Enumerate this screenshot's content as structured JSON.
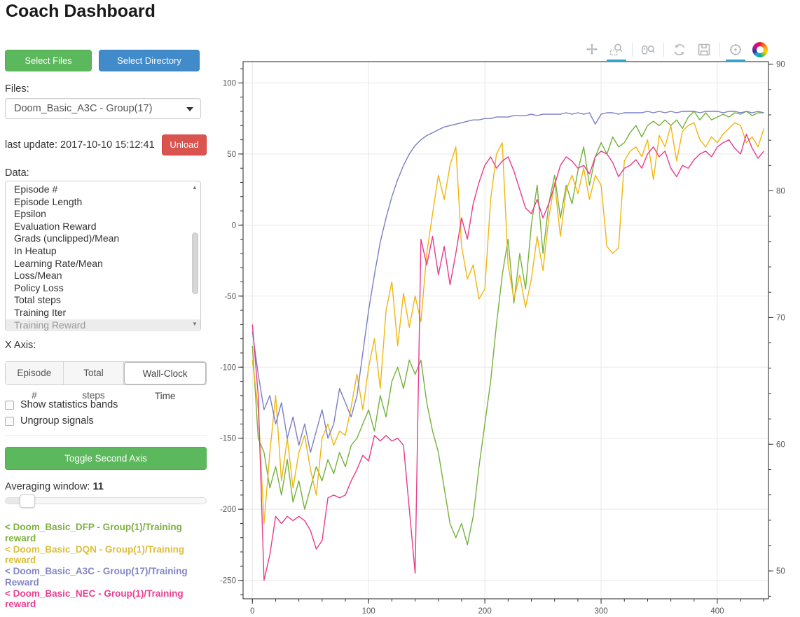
{
  "page": {
    "title": "Coach Dashboard"
  },
  "sidebar": {
    "select_files_label": "Select Files",
    "select_directory_label": "Select Directory",
    "files_label": "Files:",
    "files_selected": "Doom_Basic_A3C - Group(17)",
    "last_update": "last update: 2017-10-10 15:12:41",
    "unload_label": "Unload",
    "data_label": "Data:",
    "data_items": [
      "Episode #",
      "Episode Length",
      "Epsilon",
      "Evaluation Reward",
      "Grads (unclipped)/Mean",
      "In Heatup",
      "Learning Rate/Mean",
      "Loss/Mean",
      "Policy Loss",
      "Total steps",
      "Training Iter",
      "Training Reward"
    ],
    "data_selected": "Training Reward",
    "x_axis_label": "X Axis:",
    "x_axis_options": [
      "Episode #",
      "Total steps",
      "Wall-Clock Time"
    ],
    "x_axis_selected": "Wall-Clock Time",
    "checkboxes": [
      {
        "label": "Show statistics bands",
        "checked": false
      },
      {
        "label": "Ungroup signals",
        "checked": false
      }
    ],
    "toggle_second_axis_label": "Toggle Second Axis",
    "averaging_label": "Averaging window:",
    "averaging_value": "11",
    "legend": [
      {
        "label": "< Doom_Basic_DFP - Group(1)/Training reward",
        "color": "#7cb13e"
      },
      {
        "label": "< Doom_Basic_DQN - Group(1)/Training reward",
        "color": "#ddbe3c"
      },
      {
        "label": "< Doom_Basic_A3C - Group(17)/Training Reward",
        "color": "#8286c6"
      },
      {
        "label": "< Doom_Basic_NEC - Group(1)/Training reward",
        "color": "#ed3d92"
      }
    ]
  },
  "toolbar": {
    "tools": [
      {
        "name": "pan",
        "active": false
      },
      {
        "name": "box-zoom",
        "active": true
      },
      {
        "name": "wheel-zoom",
        "active": false
      },
      {
        "name": "reset",
        "active": false
      },
      {
        "name": "save",
        "active": false
      },
      {
        "name": "hover",
        "active": true
      },
      {
        "name": "bokeh-logo",
        "active": false
      }
    ]
  },
  "chart_data": {
    "type": "line",
    "x_range": [
      -8,
      444
    ],
    "x_start": 0,
    "x_step": 5,
    "x_ticks": {
      "major": [
        0,
        100,
        200,
        300,
        400
      ],
      "minor_step": 20
    },
    "y_left": {
      "range": [
        -263,
        115
      ],
      "major": [
        -250,
        -200,
        -150,
        -100,
        -50,
        0,
        50,
        100
      ],
      "minor_step": 10
    },
    "y_right": {
      "range": [
        47.8,
        90.2
      ],
      "major": [
        50,
        60,
        70,
        80,
        90
      ],
      "minor_step": 2
    },
    "grid": true,
    "legend_position": "sidebar-bottom-left",
    "series": [
      {
        "id": "dfp",
        "name": "Doom_Basic_DFP - Group(1)/Training reward",
        "color": "#74b23c",
        "axis": "left",
        "values": [
          -85,
          -150,
          -160,
          -185,
          -170,
          -190,
          -165,
          -195,
          -180,
          -200,
          -185,
          -170,
          -180,
          -165,
          -175,
          -160,
          -170,
          -155,
          -150,
          -140,
          -130,
          -145,
          -120,
          -135,
          -110,
          -100,
          -115,
          -95,
          -105,
          -95,
          -125,
          -145,
          -160,
          -185,
          -210,
          -220,
          -210,
          -225,
          -205,
          -170,
          -140,
          -110,
          -70,
          -35,
          -10,
          -55,
          -20,
          -45,
          0,
          28,
          -20,
          15,
          35,
          5,
          28,
          15,
          38,
          55,
          28,
          48,
          58,
          50,
          62,
          55,
          58,
          65,
          70,
          62,
          70,
          73,
          70,
          74,
          70,
          74,
          68,
          76,
          80,
          74,
          79,
          74,
          76,
          78,
          76,
          79,
          78,
          80,
          77,
          79,
          79
        ]
      },
      {
        "id": "dqn",
        "name": "Doom_Basic_DQN - Group(1)/Training reward",
        "color": "#f0b60e",
        "axis": "left",
        "values": [
          -95,
          -130,
          -210,
          -160,
          -120,
          -180,
          -150,
          -185,
          -160,
          -148,
          -172,
          -190,
          -150,
          -140,
          -155,
          -145,
          -148,
          -128,
          -105,
          -130,
          -100,
          -80,
          -115,
          -60,
          -40,
          -85,
          -48,
          -72,
          -50,
          -68,
          -20,
          8,
          35,
          18,
          42,
          55,
          -15,
          -38,
          -28,
          -52,
          -45,
          18,
          50,
          58,
          -28,
          -52,
          -35,
          -58,
          -38,
          -8,
          -32,
          5,
          30,
          -8,
          25,
          35,
          22,
          40,
          18,
          35,
          28,
          -15,
          -20,
          -16,
          45,
          52,
          55,
          48,
          60,
          32,
          63,
          55,
          70,
          45,
          66,
          70,
          72,
          60,
          55,
          62,
          58,
          64,
          68,
          72,
          70,
          58,
          62,
          55,
          68
        ]
      },
      {
        "id": "a3c",
        "name": "Doom_Basic_A3C - Group(17)/Training Reward",
        "color": "#7a7ec6",
        "axis": "left",
        "values": [
          -75,
          -105,
          -130,
          -120,
          -140,
          -125,
          -150,
          -135,
          -155,
          -140,
          -160,
          -145,
          -130,
          -150,
          -140,
          -115,
          -125,
          -135,
          -120,
          -90,
          -60,
          -35,
          -12,
          5,
          20,
          32,
          42,
          50,
          56,
          60,
          63,
          65,
          67,
          69,
          70,
          71,
          72,
          73,
          74,
          74,
          75,
          75,
          76,
          76,
          76,
          77,
          77,
          77,
          78,
          77,
          78,
          78,
          78,
          78,
          79,
          78,
          79,
          78,
          79,
          71,
          78,
          79,
          79,
          78,
          79,
          79,
          79,
          79,
          80,
          79,
          80,
          79,
          80,
          79,
          80,
          80,
          80,
          79,
          80,
          80,
          80,
          79,
          80,
          80,
          79,
          80,
          79,
          80,
          79
        ]
      },
      {
        "id": "nec",
        "name": "Doom_Basic_NEC - Group(1)/Training reward",
        "color": "#e93a8c",
        "axis": "left",
        "values": [
          -70,
          -120,
          -250,
          -232,
          -205,
          -210,
          -205,
          -208,
          -205,
          -208,
          -215,
          -228,
          -222,
          -192,
          -190,
          -192,
          -190,
          -180,
          -172,
          -162,
          -166,
          -148,
          -152,
          -148,
          -152,
          -150,
          -155,
          -200,
          -245,
          -10,
          -28,
          -8,
          -35,
          -15,
          -42,
          -20,
          5,
          -10,
          15,
          30,
          42,
          48,
          40,
          45,
          48,
          38,
          25,
          12,
          8,
          18,
          5,
          15,
          28,
          42,
          48,
          45,
          40,
          42,
          36,
          48,
          52,
          50,
          44,
          34,
          40,
          42,
          46,
          40,
          50,
          55,
          48,
          52,
          40,
          34,
          42,
          40,
          46,
          50,
          52,
          48,
          55,
          58,
          60,
          54,
          50,
          64,
          54,
          47,
          52
        ]
      }
    ]
  }
}
